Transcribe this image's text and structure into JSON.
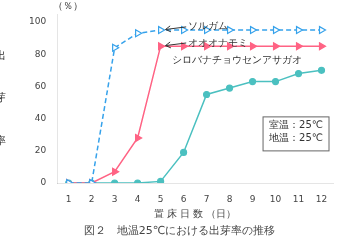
{
  "chart_data": {
    "type": "line",
    "title": "図２　地温25℃における出芽率の推移",
    "x_label": "置 床 日 数 （日）",
    "y_label": "出芽率",
    "y_label_unit": "（％）",
    "xlim": [
      0.5,
      12.5
    ],
    "ylim": [
      0,
      105
    ],
    "xticks": [
      1,
      2,
      3,
      4,
      5,
      6,
      7,
      8,
      9,
      10,
      11,
      12
    ],
    "yticks": [
      0,
      20,
      40,
      60,
      80,
      100
    ],
    "grid": false,
    "x": [
      1,
      2,
      3,
      4,
      5,
      6,
      7,
      8,
      9,
      10,
      11,
      12
    ],
    "series": [
      {
        "name": "ソルガム",
        "color": "#36a2eb",
        "marker": "open_triangle_right",
        "line_style": "dashed",
        "values": [
          0,
          0,
          84,
          93,
          95,
          95,
          95,
          95,
          95,
          95,
          95,
          95
        ]
      },
      {
        "name": "オオオナモミ",
        "color": "#ff6384",
        "marker": "triangle_right",
        "line_style": "solid",
        "values": [
          0,
          0,
          7,
          28,
          85,
          85,
          85,
          85,
          85,
          85,
          85,
          85
        ]
      },
      {
        "name": "シロバナチョウセンアサガオ",
        "color": "#4bc0c0",
        "marker": "circle",
        "line_style": "solid",
        "values": [
          0,
          0,
          0,
          0,
          1,
          19,
          55,
          59,
          63,
          63,
          68,
          70
        ]
      }
    ],
    "annotations": [
      {
        "text": "ソルガム",
        "x": 6.2,
        "y": 97,
        "arrow_to": [
          5,
          95
        ]
      },
      {
        "text": "オオオナモミ",
        "x": 6.2,
        "y": 87,
        "arrow_to": [
          5,
          85
        ]
      },
      {
        "text": "シロバナチョウセンアサガオ",
        "x": 5.5,
        "y": 76
      },
      {
        "text": [
          "室温：25℃",
          "地温：25℃"
        ],
        "box": true
      }
    ]
  }
}
